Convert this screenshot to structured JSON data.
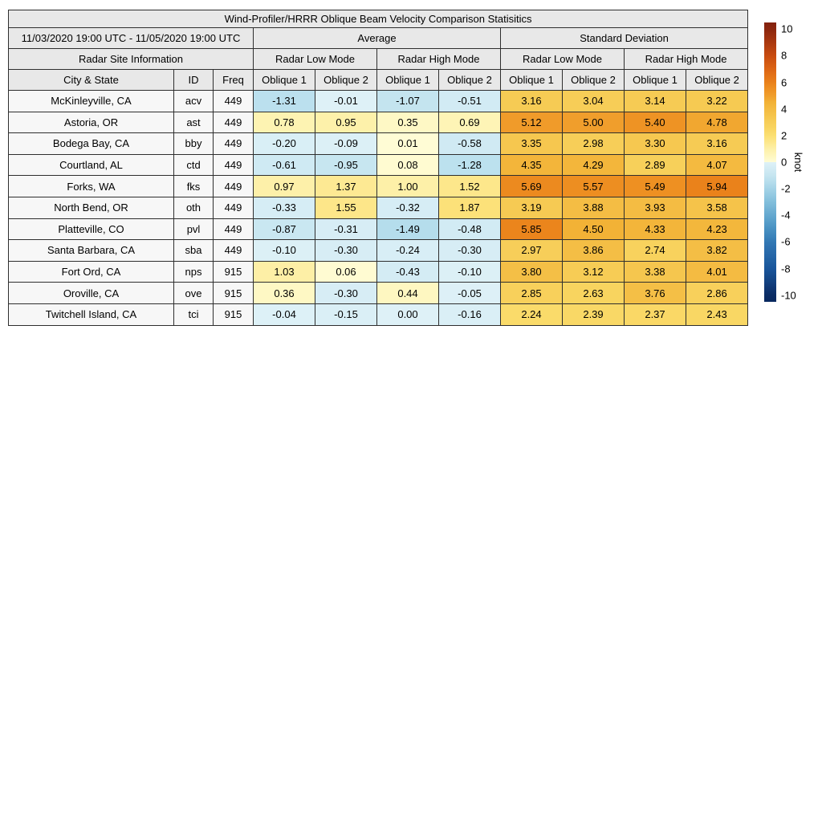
{
  "title": "Wind-Profiler/HRRR Oblique Beam Velocity Comparison Statisitics",
  "table": {
    "date_range": "11/03/2020 19:00 UTC - 11/05/2020 19:00 UTC",
    "group_headers": [
      "Average",
      "Standard Deviation"
    ],
    "site_info_header": "Radar Site Information",
    "mode_headers": [
      "Radar Low Mode",
      "Radar High Mode",
      "Radar Low Mode",
      "Radar High Mode"
    ],
    "column_headers": [
      "City & State",
      "ID",
      "Freq",
      "Oblique 1",
      "Oblique 2",
      "Oblique 1",
      "Oblique 2",
      "Oblique 1",
      "Oblique 2",
      "Oblique 1",
      "Oblique 2"
    ]
  },
  "colorbar": {
    "label": "knot",
    "ticks": [
      10,
      8,
      6,
      4,
      2,
      0,
      -2,
      -4,
      -6,
      -8,
      -10
    ],
    "vmin": -10.5,
    "vmax": 10.5
  },
  "chart_data": {
    "type": "heatmap",
    "title": "Wind-Profiler/HRRR Oblique Beam Velocity Comparison Statisitics",
    "period": "11/03/2020 19:00 UTC - 11/05/2020 19:00 UTC",
    "unit": "knot",
    "color_range": [
      -10,
      10
    ],
    "value_columns": [
      "Average Radar Low Mode Oblique 1",
      "Average Radar Low Mode Oblique 2",
      "Average Radar High Mode Oblique 1",
      "Average Radar High Mode Oblique 2",
      "Standard Deviation Radar Low Mode Oblique 1",
      "Standard Deviation Radar Low Mode Oblique 2",
      "Standard Deviation Radar High Mode Oblique 1",
      "Standard Deviation Radar High Mode Oblique 2"
    ],
    "rows": [
      {
        "city": "McKinleyville, CA",
        "id": "acv",
        "freq": "449",
        "values": [
          -1.31,
          -0.01,
          -1.07,
          -0.51,
          3.16,
          3.04,
          3.14,
          3.22
        ]
      },
      {
        "city": "Astoria, OR",
        "id": "ast",
        "freq": "449",
        "values": [
          0.78,
          0.95,
          0.35,
          0.69,
          5.12,
          5.0,
          5.4,
          4.78
        ]
      },
      {
        "city": "Bodega Bay, CA",
        "id": "bby",
        "freq": "449",
        "values": [
          -0.2,
          -0.09,
          0.01,
          -0.58,
          3.35,
          2.98,
          3.3,
          3.16
        ]
      },
      {
        "city": "Courtland, AL",
        "id": "ctd",
        "freq": "449",
        "values": [
          -0.61,
          -0.95,
          0.08,
          -1.28,
          4.35,
          4.29,
          2.89,
          4.07
        ]
      },
      {
        "city": "Forks, WA",
        "id": "fks",
        "freq": "449",
        "values": [
          0.97,
          1.37,
          1.0,
          1.52,
          5.69,
          5.57,
          5.49,
          5.94
        ]
      },
      {
        "city": "North Bend, OR",
        "id": "oth",
        "freq": "449",
        "values": [
          -0.33,
          1.55,
          -0.32,
          1.87,
          3.19,
          3.88,
          3.93,
          3.58
        ]
      },
      {
        "city": "Platteville, CO",
        "id": "pvl",
        "freq": "449",
        "values": [
          -0.87,
          -0.31,
          -1.49,
          -0.48,
          5.85,
          4.5,
          4.33,
          4.23
        ]
      },
      {
        "city": "Santa Barbara, CA",
        "id": "sba",
        "freq": "449",
        "values": [
          -0.1,
          -0.3,
          -0.24,
          -0.3,
          2.97,
          3.86,
          2.74,
          3.82
        ]
      },
      {
        "city": "Fort Ord, CA",
        "id": "nps",
        "freq": "915",
        "values": [
          1.03,
          0.06,
          -0.43,
          -0.1,
          3.8,
          3.12,
          3.38,
          4.01
        ]
      },
      {
        "city": "Oroville, CA",
        "id": "ove",
        "freq": "915",
        "values": [
          0.36,
          -0.3,
          0.44,
          -0.05,
          2.85,
          2.63,
          3.76,
          2.86
        ]
      },
      {
        "city": "Twitchell Island, CA",
        "id": "tci",
        "freq": "915",
        "values": [
          -0.04,
          -0.15,
          0.0,
          -0.16,
          2.24,
          2.39,
          2.37,
          2.43
        ]
      }
    ],
    "colors": {
      "negative_scale": [
        [
          -10.5,
          [
            8,
            40,
            95
          ]
        ],
        [
          -10,
          [
            10,
            44,
            100
          ]
        ],
        [
          -8,
          [
            25,
            85,
            155
          ]
        ],
        [
          -6,
          [
            50,
            120,
            180
          ]
        ],
        [
          -5,
          [
            72,
            145,
            194
          ]
        ],
        [
          -4,
          [
            100,
            168,
            207
          ]
        ],
        [
          -3,
          [
            130,
            190,
            219
          ]
        ],
        [
          -2,
          [
            164,
            211,
            231
          ]
        ],
        [
          -1.5,
          [
            181,
            221,
            236
          ]
        ],
        [
          -1,
          [
            198,
            229,
            240
          ]
        ],
        [
          -0.5,
          [
            210,
            235,
            244
          ]
        ],
        [
          0,
          [
            222,
            241,
            247
          ]
        ]
      ],
      "positive_scale": [
        [
          0,
          [
            255,
            252,
            213
          ]
        ],
        [
          0.5,
          [
            254,
            246,
            190
          ]
        ],
        [
          1,
          [
            253,
            240,
            168
          ]
        ],
        [
          1.5,
          [
            253,
            231,
            140
          ]
        ],
        [
          2,
          [
            251,
            223,
            114
          ]
        ],
        [
          2.5,
          [
            249,
            214,
            98
          ]
        ],
        [
          3,
          [
            247,
            206,
            88
          ]
        ],
        [
          3.5,
          [
            245,
            196,
            75
          ]
        ],
        [
          4,
          [
            244,
            187,
            66
          ]
        ],
        [
          4.5,
          [
            242,
            178,
            54
          ]
        ],
        [
          5,
          [
            240,
            158,
            44
          ]
        ],
        [
          5.5,
          [
            238,
            144,
            34
          ]
        ],
        [
          6,
          [
            233,
            128,
            26
          ]
        ],
        [
          7,
          [
            220,
            100,
            20
          ]
        ],
        [
          8,
          [
            200,
            75,
            16
          ]
        ],
        [
          9,
          [
            170,
            56,
            15
          ]
        ],
        [
          10,
          [
            140,
            38,
            14
          ]
        ],
        [
          10.5,
          [
            130,
            33,
            13
          ]
        ]
      ]
    }
  }
}
